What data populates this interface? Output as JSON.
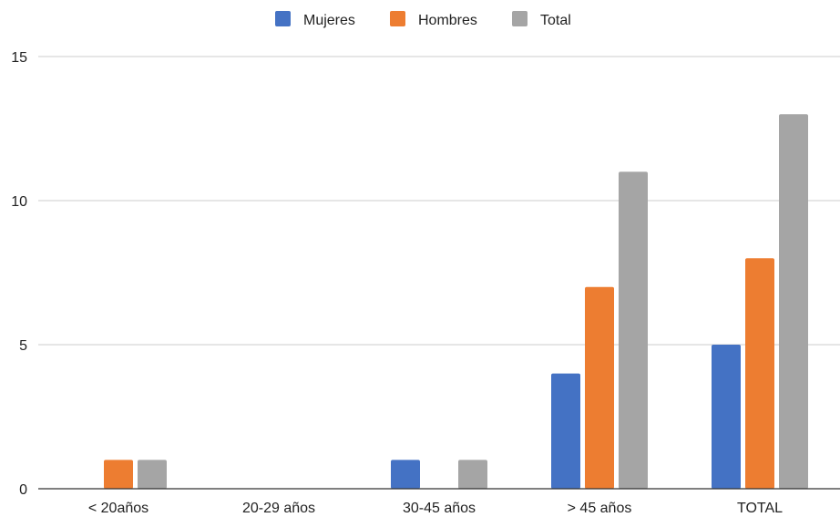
{
  "chart_data": {
    "type": "bar",
    "title": "",
    "xlabel": "",
    "ylabel": "",
    "categories": [
      "< 20años",
      "20-29 años",
      "30-45 años",
      "> 45 años",
      "TOTAL"
    ],
    "series": [
      {
        "name": "Mujeres",
        "values": [
          0,
          0,
          1,
          4,
          5
        ],
        "color": "#4472c4"
      },
      {
        "name": "Hombres",
        "values": [
          1,
          0,
          0,
          7,
          8
        ],
        "color": "#ed7d31"
      },
      {
        "name": "Total",
        "values": [
          1,
          0,
          1,
          11,
          13
        ],
        "color": "#a5a5a5"
      }
    ],
    "ylim": [
      0,
      15
    ],
    "yticks": [
      0,
      5,
      10,
      15
    ],
    "grid": true,
    "legend_position": "top-center"
  }
}
